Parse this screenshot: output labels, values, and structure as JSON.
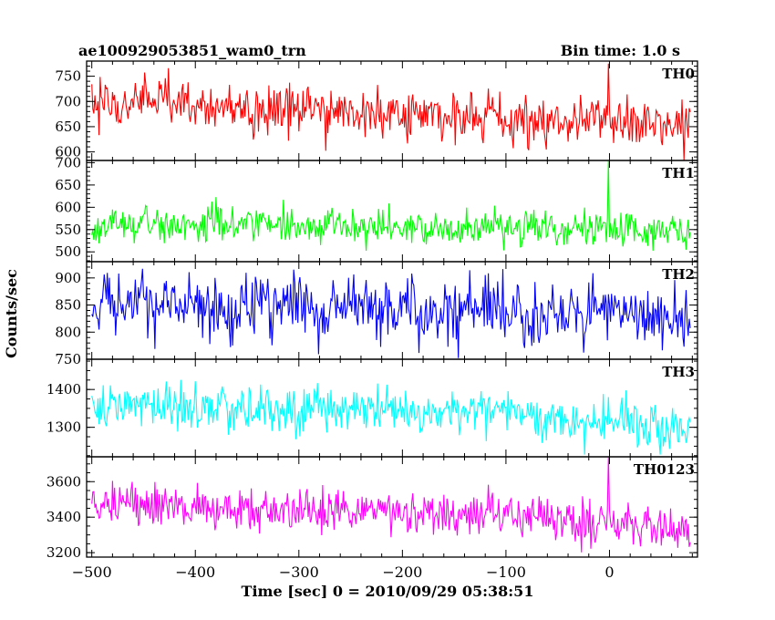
{
  "title_left": "ae100929053851_wam0_trn",
  "title_right": "Bin time: 1.0 s",
  "ylabel": "Counts/sec",
  "xlabel": "Time [sec] 0 = 2010/09/29 05:38:51",
  "chart_data": {
    "type": "line",
    "title": "ae100929053851_wam0_trn",
    "subtitle": "Bin time: 1.0 s",
    "xlabel": "Time [sec] 0 = 2010/09/29 05:38:51",
    "ylabel": "Counts/sec",
    "xlim": [
      -505,
      85
    ],
    "x_ticks": [
      -500,
      -400,
      -300,
      -200,
      -100,
      0
    ],
    "x_tick_labels": [
      "−500",
      "−400",
      "−300",
      "−200",
      "−100",
      "0"
    ],
    "bin_time_s": 1.0,
    "x_start": -500,
    "x_end": 78,
    "grid": false,
    "series": [
      {
        "name": "TH0",
        "color": "#ff0000",
        "ylim": [
          583,
          780
        ],
        "yticks": [
          600,
          650,
          700,
          750
        ],
        "trend_x": [
          -500,
          -450,
          -400,
          -350,
          -300,
          -250,
          -200,
          -150,
          -100,
          -50,
          0,
          40,
          78
        ],
        "trend_y": [
          705,
          700,
          692,
          688,
          684,
          680,
          676,
          672,
          668,
          662,
          665,
          652,
          648
        ],
        "noise_sd": 24,
        "spike_x": -1,
        "spike_y": 775
      },
      {
        "name": "TH1",
        "color": "#00ff00",
        "ylim": [
          478,
          705
        ],
        "yticks": [
          500,
          550,
          600,
          650,
          700
        ],
        "trend_x": [
          -500,
          -450,
          -400,
          -350,
          -300,
          -250,
          -200,
          -150,
          -100,
          -50,
          0,
          40,
          78
        ],
        "trend_y": [
          560,
          562,
          565,
          563,
          560,
          555,
          552,
          552,
          550,
          549,
          553,
          548,
          545
        ],
        "noise_sd": 21,
        "spike_x": -1,
        "spike_y": 705
      },
      {
        "name": "TH2",
        "color": "#0000ff",
        "ylim": [
          750,
          930
        ],
        "yticks": [
          750,
          800,
          850,
          900
        ],
        "trend_x": [
          -500,
          -450,
          -400,
          -350,
          -300,
          -250,
          -200,
          -150,
          -100,
          -50,
          0,
          40,
          78
        ],
        "trend_y": [
          850,
          852,
          850,
          848,
          846,
          845,
          843,
          835,
          830,
          832,
          830,
          826,
          824
        ],
        "noise_sd": 28,
        "spike_x": -1,
        "spike_y": 870
      },
      {
        "name": "TH3",
        "color": "#00ffff",
        "ylim": [
          1222,
          1480
        ],
        "yticks": [
          1300,
          1400
        ],
        "trend_x": [
          -500,
          -450,
          -400,
          -350,
          -300,
          -250,
          -200,
          -150,
          -100,
          -50,
          0,
          40,
          78
        ],
        "trend_y": [
          1350,
          1352,
          1350,
          1348,
          1346,
          1345,
          1344,
          1343,
          1340,
          1320,
          1315,
          1310,
          1305
        ],
        "noise_sd": 30,
        "spike_x": -1,
        "spike_y": 1380
      },
      {
        "name": "TH0123",
        "color": "#ff00ff",
        "ylim": [
          3175,
          3740
        ],
        "yticks": [
          3200,
          3400,
          3600
        ],
        "trend_x": [
          -500,
          -450,
          -400,
          -350,
          -300,
          -250,
          -200,
          -150,
          -100,
          -50,
          0,
          40,
          78
        ],
        "trend_y": [
          3470,
          3462,
          3452,
          3445,
          3438,
          3430,
          3422,
          3412,
          3398,
          3382,
          3370,
          3340,
          3325
        ],
        "noise_sd": 62,
        "spike_x": -1,
        "spike_y": 3740
      }
    ]
  }
}
